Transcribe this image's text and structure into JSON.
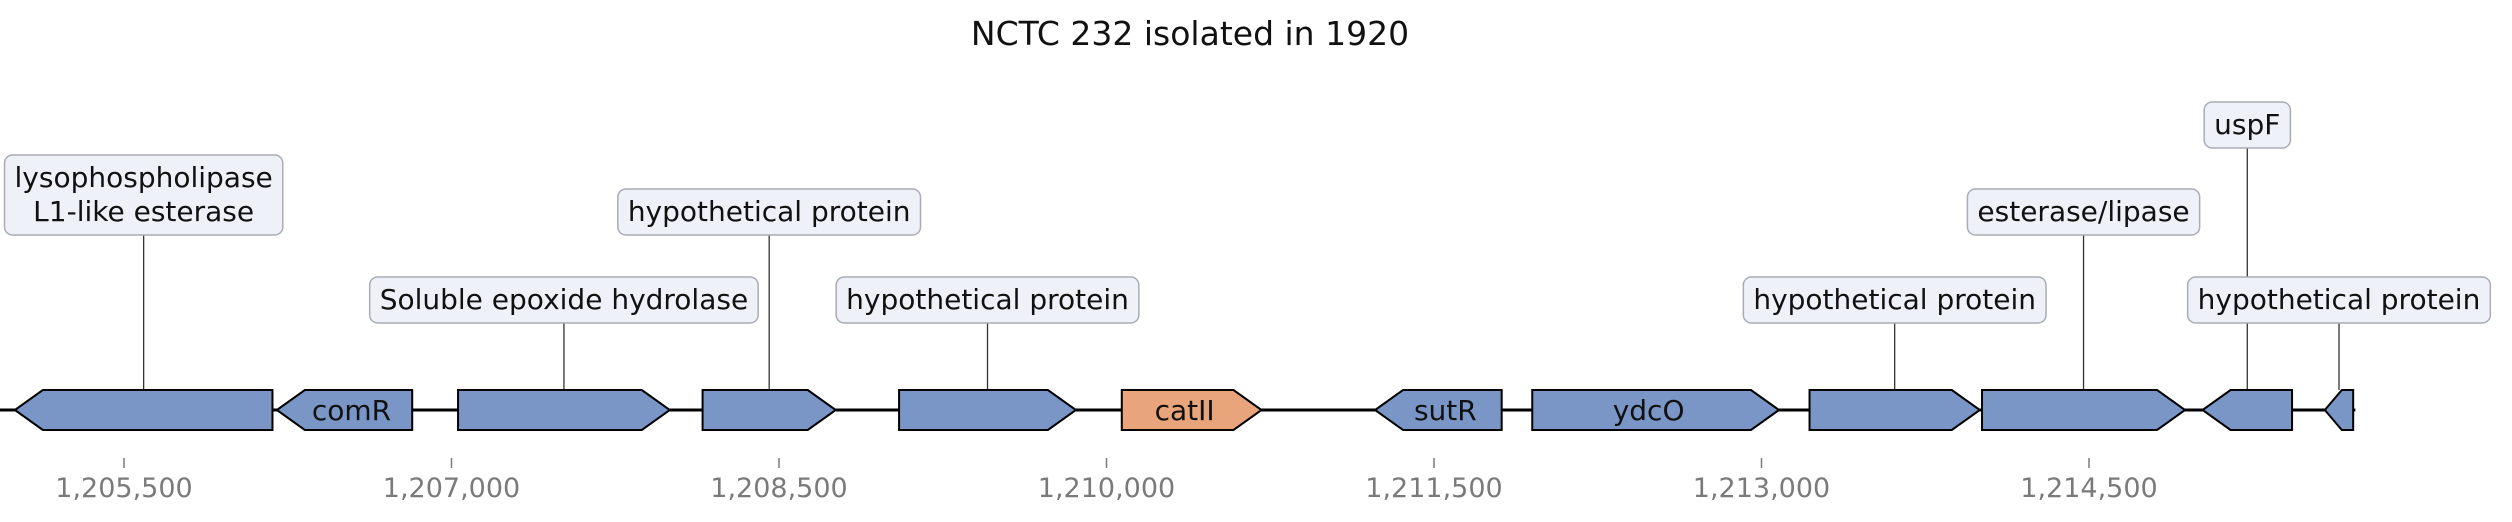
{
  "title": "NCTC 232 isolated in 1920",
  "colors": {
    "gene_default": "#7996c6",
    "gene_highlight": "#e8a47a",
    "label_box_fill": "#eef1f8",
    "label_box_stroke": "#a9acb6",
    "backbone": "#000000"
  },
  "genomic_range": [
    1204900,
    1215720
  ],
  "genes": [
    {
      "id": "g1",
      "start": 1205000,
      "end": 1206180,
      "strand": -1,
      "inside_label": "",
      "label": "lysophospholipase L1-like esterase",
      "label_lines": [
        "lysophospholipase",
        "L1-like esterase"
      ],
      "label_level": 2,
      "highlight": false
    },
    {
      "id": "g2",
      "start": 1206200,
      "end": 1206820,
      "strand": -1,
      "inside_label": "comR",
      "label": "",
      "label_lines": [],
      "label_level": 0,
      "highlight": false
    },
    {
      "id": "g3",
      "start": 1207030,
      "end": 1208000,
      "strand": 1,
      "inside_label": "",
      "label": "Soluble epoxide hydrolase",
      "label_lines": [
        "Soluble epoxide hydrolase"
      ],
      "label_level": 1,
      "highlight": false
    },
    {
      "id": "g4",
      "start": 1208150,
      "end": 1208760,
      "strand": 1,
      "inside_label": "",
      "label": "hypothetical protein",
      "label_lines": [
        "hypothetical protein"
      ],
      "label_level": 2,
      "highlight": false
    },
    {
      "id": "g5",
      "start": 1209050,
      "end": 1209860,
      "strand": 1,
      "inside_label": "",
      "label": "hypothetical protein",
      "label_lines": [
        "hypothetical protein"
      ],
      "label_level": 1,
      "highlight": false
    },
    {
      "id": "g6",
      "start": 1210070,
      "end": 1210710,
      "strand": 1,
      "inside_label": "catII",
      "label": "",
      "label_lines": [],
      "label_level": 0,
      "highlight": true
    },
    {
      "id": "g7",
      "start": 1211230,
      "end": 1211810,
      "strand": -1,
      "inside_label": "sutR",
      "label": "",
      "label_lines": [],
      "label_level": 0,
      "highlight": false
    },
    {
      "id": "g8",
      "start": 1211950,
      "end": 1213080,
      "strand": 1,
      "inside_label": "ydcO",
      "label": "",
      "label_lines": [],
      "label_level": 0,
      "highlight": false
    },
    {
      "id": "g9",
      "start": 1213220,
      "end": 1214000,
      "strand": 1,
      "inside_label": "",
      "label": "hypothetical protein",
      "label_lines": [
        "hypothetical protein"
      ],
      "label_level": 1,
      "highlight": false
    },
    {
      "id": "g10",
      "start": 1214010,
      "end": 1214940,
      "strand": 1,
      "inside_label": "",
      "label": "esterase/lipase",
      "label_lines": [
        "esterase/lipase"
      ],
      "label_level": 2,
      "highlight": false
    },
    {
      "id": "g11",
      "start": 1215020,
      "end": 1215430,
      "strand": -1,
      "inside_label": "",
      "label": "uspF",
      "label_lines": [
        "uspF"
      ],
      "label_level": 3,
      "highlight": false
    },
    {
      "id": "g12",
      "start": 1215580,
      "end": 1215710,
      "strand": -1,
      "inside_label": "",
      "label": "hypothetical protein",
      "label_lines": [
        "hypothetical protein"
      ],
      "label_level": 1,
      "highlight": false
    }
  ],
  "axis": {
    "ticks": [
      {
        "value": 1205500,
        "label": "1,205,500"
      },
      {
        "value": 1207000,
        "label": "1,207,000"
      },
      {
        "value": 1208500,
        "label": "1,208,500"
      },
      {
        "value": 1210000,
        "label": "1,210,000"
      },
      {
        "value": 1211500,
        "label": "1,211,500"
      },
      {
        "value": 1213000,
        "label": "1,213,000"
      },
      {
        "value": 1214500,
        "label": "1,214,500"
      }
    ]
  }
}
